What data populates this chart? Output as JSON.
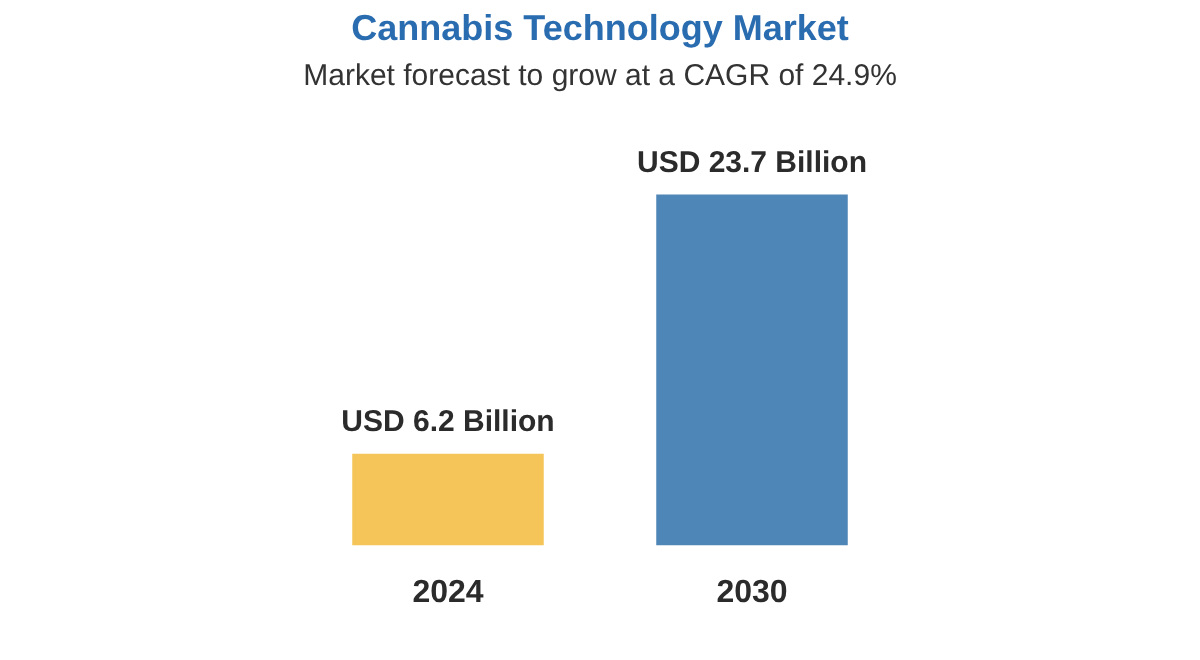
{
  "chart_data": {
    "type": "bar",
    "title": "Cannabis Technology Market",
    "subtitle": "Market forecast to grow at a CAGR of 24.9%",
    "categories": [
      "2024",
      "2030"
    ],
    "values": [
      6.2,
      23.7
    ],
    "colors": [
      "#f5c55a",
      "#4f86b8"
    ],
    "value_labels": [
      "USD 6.2 Billion",
      "USD 23.7 Billion"
    ],
    "grid": false,
    "legend": false,
    "tick_labels": "x"
  }
}
